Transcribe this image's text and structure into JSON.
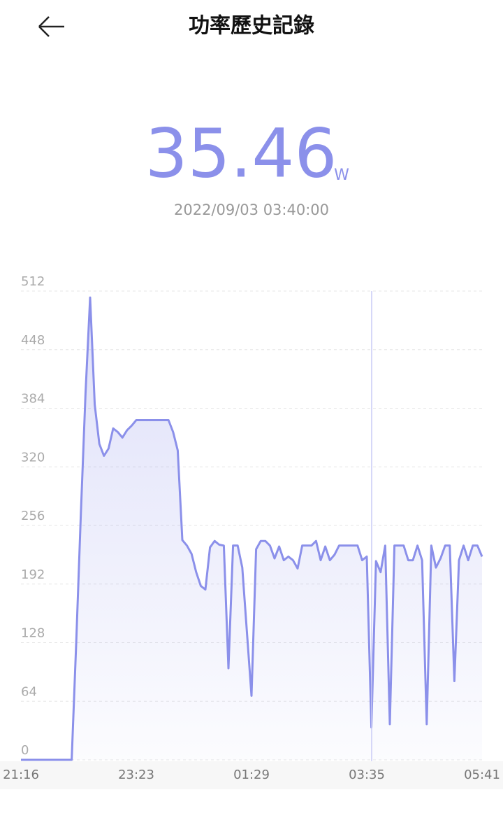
{
  "header": {
    "title": "功率歷史記錄"
  },
  "reading": {
    "value": "35.46",
    "unit": "W",
    "timestamp": "2022/09/03 03:40:00"
  },
  "chart_data": {
    "type": "line",
    "categories": [
      "21:16",
      null,
      null,
      null,
      null,
      null,
      null,
      null,
      null,
      null,
      null,
      null,
      null,
      null,
      null,
      null,
      null,
      null,
      null,
      null,
      null,
      null,
      null,
      null,
      null,
      "23:23",
      null,
      null,
      null,
      null,
      null,
      null,
      null,
      null,
      null,
      null,
      null,
      null,
      null,
      null,
      null,
      null,
      null,
      null,
      null,
      null,
      null,
      null,
      null,
      null,
      "01:29",
      null,
      null,
      null,
      null,
      null,
      null,
      null,
      null,
      null,
      null,
      null,
      null,
      null,
      null,
      null,
      null,
      null,
      null,
      null,
      null,
      null,
      null,
      null,
      null,
      "03:35",
      null,
      null,
      null,
      null,
      null,
      null,
      null,
      null,
      null,
      null,
      null,
      null,
      null,
      null,
      null,
      null,
      null,
      null,
      null,
      null,
      null,
      null,
      null,
      null,
      "05:41"
    ],
    "values": [
      0,
      0,
      0,
      0,
      0,
      0,
      0,
      0,
      0,
      0,
      0,
      0,
      130,
      270,
      400,
      505,
      388,
      345,
      332,
      340,
      362,
      358,
      352,
      360,
      365,
      371,
      371,
      371,
      371,
      371,
      371,
      371,
      371,
      358,
      338,
      240,
      234,
      225,
      205,
      190,
      186,
      232,
      239,
      235,
      234,
      100,
      234,
      234,
      210,
      140,
      70,
      230,
      239,
      239,
      234,
      220,
      233,
      218,
      222,
      218,
      209,
      234,
      234,
      234,
      239,
      218,
      233,
      218,
      224,
      234,
      234,
      234,
      234,
      234,
      218,
      222,
      35.46,
      217,
      205,
      234,
      39,
      234,
      234,
      234,
      218,
      218,
      234,
      218,
      39,
      234,
      210,
      220,
      234,
      234,
      86,
      218,
      234,
      218,
      234,
      234,
      222
    ],
    "color": "#8b90ea",
    "ylim": [
      0,
      512
    ],
    "yticks": [
      0,
      64,
      128,
      192,
      256,
      320,
      384,
      448,
      512
    ],
    "grid": true
  }
}
